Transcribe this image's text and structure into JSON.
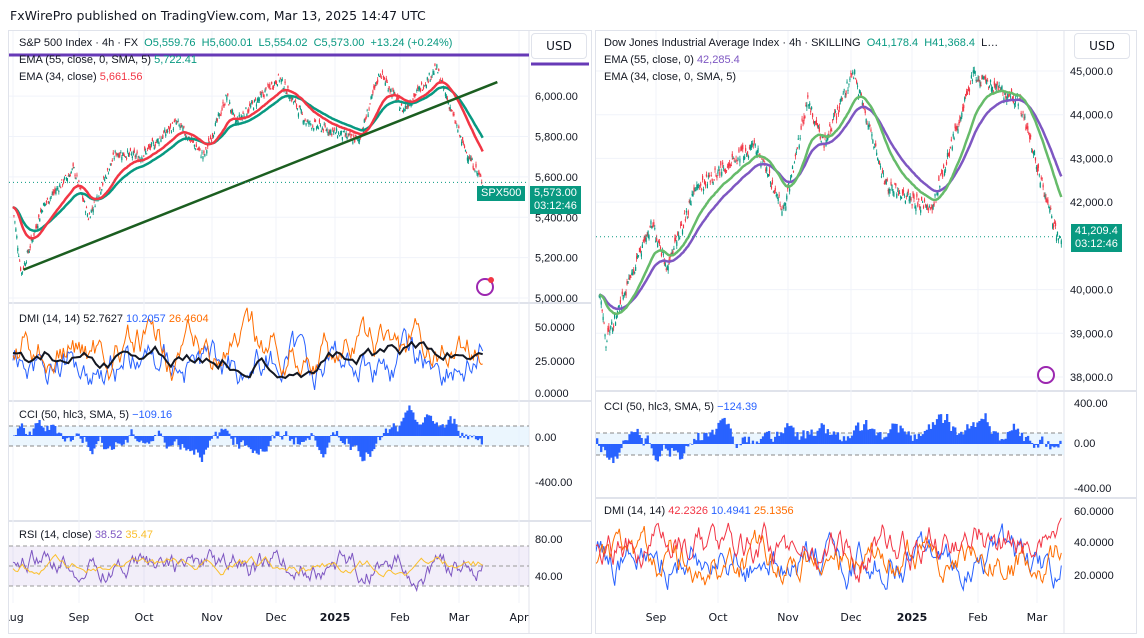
{
  "header": "FxWirePro published on TradingView.com, Mar 13, 2025 14:47 UTC",
  "currency": "USD",
  "left": {
    "title": "S&P 500 Index · 4h · FX",
    "o": "O5,559.76",
    "h": "H5,600.01",
    "l": "L5,554.02",
    "c": "C5,573.00",
    "chg": "+13.24 (+0.24%)",
    "ema55": "EMA (55, close, 0, SMA, 5)",
    "ema55_val": "5,722.41",
    "ema34": "EMA (34, close)",
    "ema34_val": "5,661.56",
    "symbol_tag": "SPX500",
    "price_tag": "5,573.00",
    "countdown": "03:12:46",
    "dmi": "DMI (14, 14)",
    "dmi_adx": "52.7627",
    "dmi_plus": "10.2057",
    "dmi_minus": "26.4604",
    "cci": "CCI (50, hlc3, SMA, 5)",
    "cci_val": "−109.16",
    "rsi": "RSI (14, close)",
    "rsi_val": "38.52",
    "rsi_ma": "35.47"
  },
  "right": {
    "title": "Dow Jones Industrial Average Index · 4h · SKILLING",
    "o": "O41,178.4",
    "h": "H41,368.4",
    "more": "L…",
    "ema55": "EMA (55, close, 0)",
    "ema55_val": "42,285.4",
    "ema34": "EMA (34, close, 0, SMA, 5)",
    "price_tag": "41,209.4",
    "countdown": "03:12:46",
    "cci": "CCI (50, hlc3, SMA, 5)",
    "cci_val": "−124.39",
    "dmi": "DMI (14, 14)",
    "dmi_adx": "42.2326",
    "dmi_plus": "10.4941",
    "dmi_minus": "25.1356"
  },
  "chart_data": [
    {
      "type": "line",
      "name": "S&P 500 Index 4h",
      "ylim": [
        5000,
        6100
      ],
      "yticks": [
        "6,000.00",
        "5,800.00",
        "5,600.00",
        "5,400.00",
        "5,200.00",
        "5,000.00"
      ],
      "xticks": [
        "Aug",
        "Sep",
        "Oct",
        "Nov",
        "Dec",
        "2025",
        "Feb",
        "Mar",
        "Apr"
      ],
      "dmi_ticks": [
        "50.0000",
        "25.0000",
        "0.0000"
      ],
      "cci_ticks": [
        "0.00",
        "-400.00"
      ],
      "rsi_ticks": [
        "80.00",
        "40.00"
      ],
      "points": [
        [
          "2024-08-01",
          5450
        ],
        [
          "2024-08-05",
          5120
        ],
        [
          "2024-08-15",
          5450
        ],
        [
          "2024-08-30",
          5640
        ],
        [
          "2024-09-06",
          5400
        ],
        [
          "2024-09-19",
          5720
        ],
        [
          "2024-10-01",
          5700
        ],
        [
          "2024-10-18",
          5870
        ],
        [
          "2024-10-31",
          5700
        ],
        [
          "2024-11-11",
          6000
        ],
        [
          "2024-11-15",
          5870
        ],
        [
          "2024-12-06",
          6090
        ],
        [
          "2024-12-19",
          5870
        ],
        [
          "2025-01-13",
          5780
        ],
        [
          "2025-01-23",
          6120
        ],
        [
          "2025-02-03",
          5930
        ],
        [
          "2025-02-19",
          6140
        ],
        [
          "2025-03-04",
          5750
        ],
        [
          "2025-03-13",
          5573
        ]
      ],
      "trendline": [
        [
          "2024-08-06",
          5140
        ],
        [
          "2025-03-20",
          6070
        ]
      ]
    },
    {
      "type": "line",
      "name": "Dow Jones Industrial Average Index 4h",
      "ylim": [
        38000,
        45000
      ],
      "yticks": [
        "45,000.0",
        "44,000.0",
        "43,000.0",
        "42,000.0",
        "40,000.0",
        "39,000.0",
        "38,000.0"
      ],
      "xticks": [
        "Sep",
        "Oct",
        "Nov",
        "Dec",
        "2025",
        "Feb",
        "Mar"
      ],
      "cci_ticks": [
        "400.00",
        "0.00",
        "-400.00"
      ],
      "dmi_ticks": [
        "60.0000",
        "40.0000",
        "20.0000"
      ],
      "points": [
        [
          "2024-08-05",
          40000
        ],
        [
          "2024-08-08",
          38800
        ],
        [
          "2024-08-30",
          41500
        ],
        [
          "2024-09-06",
          40500
        ],
        [
          "2024-09-20",
          42300
        ],
        [
          "2024-10-18",
          43300
        ],
        [
          "2024-11-01",
          41800
        ],
        [
          "2024-11-12",
          44300
        ],
        [
          "2024-11-20",
          43300
        ],
        [
          "2024-12-04",
          45000
        ],
        [
          "2024-12-19",
          42400
        ],
        [
          "2025-01-10",
          41800
        ],
        [
          "2025-01-30",
          44900
        ],
        [
          "2025-02-21",
          44300
        ],
        [
          "2025-03-11",
          41200
        ],
        [
          "2025-03-13",
          41209
        ]
      ]
    }
  ]
}
